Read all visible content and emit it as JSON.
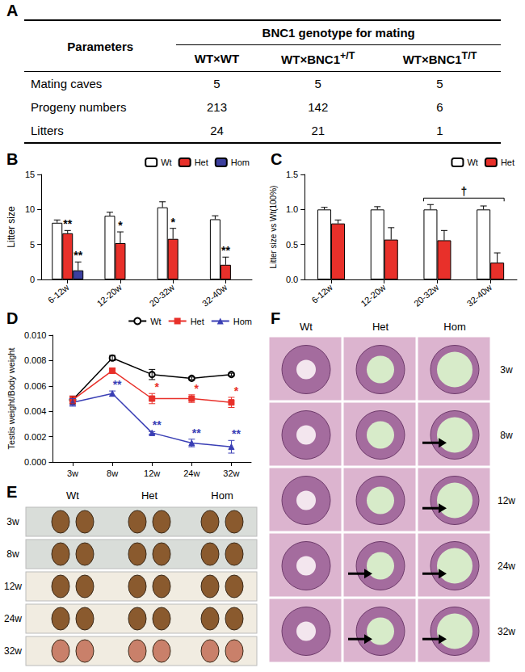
{
  "table": {
    "label": "A",
    "header": "Parameters",
    "group": "BNC1 genotype for mating",
    "columns": [
      {
        "text": "WT×WT"
      },
      {
        "text": "WT×BNC1",
        "sup": "+/T"
      },
      {
        "text": "WT×BNC1",
        "sup": "T/T"
      }
    ],
    "rows": [
      {
        "name": "Mating caves",
        "values": [
          5,
          5,
          5
        ]
      },
      {
        "name": "Progeny numbers",
        "values": [
          213,
          142,
          6
        ]
      },
      {
        "name": "Litters",
        "values": [
          24,
          21,
          1
        ]
      }
    ]
  },
  "chart_data": [
    {
      "label": "B",
      "type": "bar",
      "ylabel": "Litter size",
      "categories": [
        "6-12w",
        "12-20w",
        "20-32w",
        "32-40w"
      ],
      "series": [
        {
          "name": "Wt",
          "color": "#ffffff",
          "values": [
            8.1,
            9.1,
            10.3,
            8.6
          ],
          "errors": [
            0.4,
            0.5,
            0.8,
            0.5
          ]
        },
        {
          "name": "Het",
          "color": "#e8302a",
          "values": [
            6.6,
            5.2,
            5.8,
            2.1
          ],
          "errors": [
            0.4,
            1.6,
            1.5,
            1.1
          ]
        },
        {
          "name": "Hom",
          "color": "#3c3f9e",
          "values": [
            1.3,
            null,
            null,
            null
          ],
          "errors": [
            1.2,
            null,
            null,
            null
          ]
        }
      ],
      "ylim": [
        0,
        15
      ],
      "yticks": [
        0,
        5,
        10,
        15
      ],
      "grid": false,
      "legend": "upper right",
      "annotations": [
        {
          "series": "Het",
          "category": "6-12w",
          "text": "**"
        },
        {
          "series": "Hom",
          "category": "6-12w",
          "text": "**"
        },
        {
          "series": "Het",
          "category": "12-20w",
          "text": "*"
        },
        {
          "series": "Het",
          "category": "20-32w",
          "text": "*"
        },
        {
          "series": "Het",
          "category": "32-40w",
          "text": "**"
        }
      ]
    },
    {
      "label": "C",
      "type": "bar",
      "ylabel": "Litter size vs Wt(100%)",
      "categories": [
        "6-12w",
        "12-20w",
        "20-32w",
        "32-40w"
      ],
      "series": [
        {
          "name": "Wt",
          "color": "#ffffff",
          "values": [
            1.0,
            1.0,
            1.0,
            1.0
          ],
          "errors": [
            0.03,
            0.04,
            0.07,
            0.05
          ]
        },
        {
          "name": "Het",
          "color": "#e8302a",
          "values": [
            0.8,
            0.57,
            0.56,
            0.24
          ],
          "errors": [
            0.05,
            0.17,
            0.14,
            0.14
          ]
        }
      ],
      "ylim": [
        0,
        1.5
      ],
      "yticks": [
        {
          "value": 0,
          "label": "0.0"
        },
        {
          "value": 0.5,
          "label": "0.5"
        },
        {
          "value": 1,
          "label": "1.0"
        },
        {
          "value": 1.5,
          "label": "1.5"
        }
      ],
      "grid": false,
      "legend": "upper right",
      "annotations": [
        {
          "series": "Het",
          "categories": [
            "20-32w",
            "32-40w"
          ],
          "text": "†"
        }
      ]
    },
    {
      "label": "D",
      "type": "line",
      "ylabel": "Testis weight/Body weight",
      "categories": [
        "3w",
        "8w",
        "12w",
        "24w",
        "32w"
      ],
      "series": [
        {
          "name": "Wt",
          "color": "#000000",
          "marker": "open circle",
          "values": [
            0.0049,
            0.0082,
            0.0069,
            0.0066,
            0.0069
          ],
          "errors": [
            0.0003,
            0.0002,
            0.0004,
            0.0001,
            0.0001
          ]
        },
        {
          "name": "Het",
          "color": "#e8302a",
          "marker": "square",
          "values": [
            0.0049,
            0.0072,
            0.005,
            0.005,
            0.0047
          ],
          "errors": [
            0.0003,
            0.0002,
            0.0004,
            0.0003,
            0.0004
          ]
        },
        {
          "name": "Hom",
          "color": "#3a3fb5",
          "marker": "triangle",
          "values": [
            0.0047,
            0.0054,
            0.0023,
            0.0015,
            0.0012
          ],
          "errors": [
            0.0003,
            0.0002,
            0.0001,
            0.0003,
            0.0005
          ]
        }
      ],
      "ylim": [
        0,
        0.01
      ],
      "yticks": [
        {
          "value": 0,
          "label": "0.000"
        },
        {
          "value": 0.002,
          "label": "0.002"
        },
        {
          "value": 0.004,
          "label": "0.004"
        },
        {
          "value": 0.006,
          "label": "0.006"
        },
        {
          "value": 0.008,
          "label": "0.008"
        },
        {
          "value": 0.01,
          "label": "0.010"
        }
      ],
      "grid": false,
      "legend": "upper right",
      "annotations": [
        {
          "series": "Hom",
          "category": "8w",
          "text": "**"
        },
        {
          "series": "Hom",
          "category": "12w",
          "text": "**"
        },
        {
          "series": "Hom",
          "category": "24w",
          "text": "**"
        },
        {
          "series": "Hom",
          "category": "32w",
          "text": "**"
        },
        {
          "series": "Het",
          "category": "12w",
          "text": "*"
        },
        {
          "series": "Het",
          "category": "24w",
          "text": "*"
        },
        {
          "series": "Het",
          "category": "32w",
          "text": "*"
        }
      ]
    }
  ],
  "photos": [
    {
      "label": "E",
      "columns": [
        "Wt",
        "Het",
        "Hom"
      ],
      "rows": [
        "3w",
        "8w",
        "12w",
        "24w",
        "32w"
      ]
    },
    {
      "label": "F",
      "columns": [
        "Wt",
        "Het",
        "Hom"
      ],
      "rows": [
        "3w",
        "8w",
        "12w",
        "24w",
        "32w"
      ],
      "arrows": [
        {
          "row": "8w",
          "column": "Hom"
        },
        {
          "row": "12w",
          "column": "Hom"
        },
        {
          "row": "24w",
          "column": "Het"
        },
        {
          "row": "24w",
          "column": "Hom"
        },
        {
          "row": "32w",
          "column": "Het"
        },
        {
          "row": "32w",
          "column": "Hom"
        }
      ]
    }
  ]
}
